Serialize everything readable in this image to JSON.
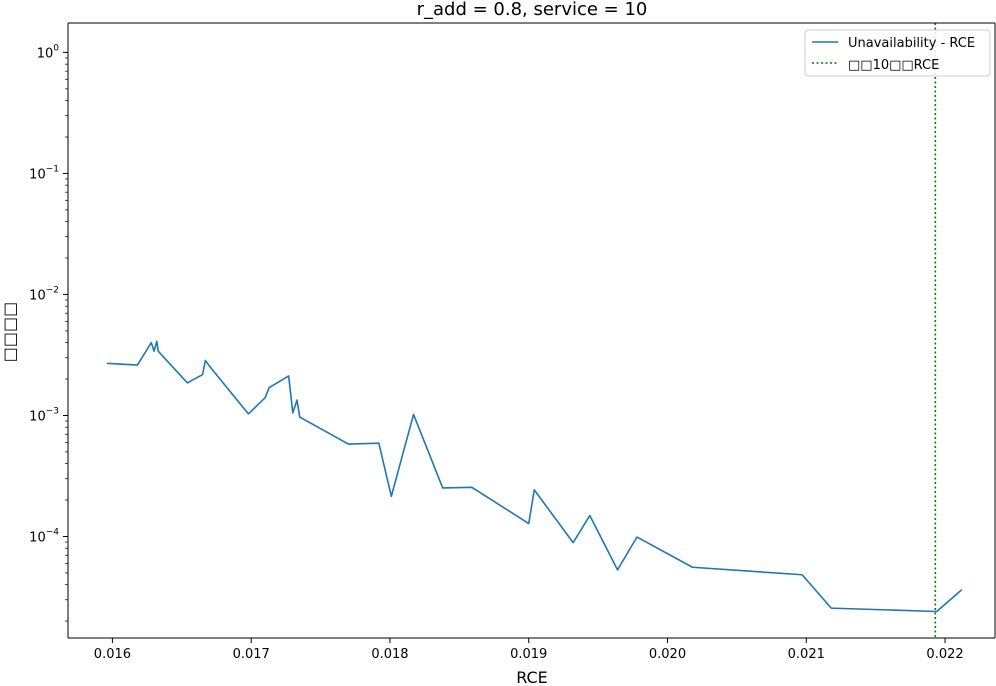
{
  "chart_data": {
    "type": "line",
    "title": "r_add = 0.8, service = 10",
    "xlabel": "RCE",
    "ylabel": "□□□□",
    "xlim": [
      0.01568,
      0.02236
    ],
    "ylim": [
      1.45e-05,
      1.75
    ],
    "yscale": "log",
    "grid": false,
    "legend_position": "top-right",
    "x_ticks": [
      {
        "value": 0.016,
        "label": "0.016"
      },
      {
        "value": 0.017,
        "label": "0.017"
      },
      {
        "value": 0.018,
        "label": "0.018"
      },
      {
        "value": 0.019,
        "label": "0.019"
      },
      {
        "value": 0.02,
        "label": "0.020"
      },
      {
        "value": 0.021,
        "label": "0.021"
      },
      {
        "value": 0.022,
        "label": "0.022"
      }
    ],
    "y_ticks": [
      {
        "value": 1,
        "base": "10",
        "exp": "0"
      },
      {
        "value": 0.1,
        "base": "10",
        "exp": "−1"
      },
      {
        "value": 0.01,
        "base": "10",
        "exp": "−2"
      },
      {
        "value": 0.001,
        "base": "10",
        "exp": "−3"
      },
      {
        "value": 0.0001,
        "base": "10",
        "exp": "−4"
      }
    ],
    "series": [
      {
        "name": "Unavailability - RCE",
        "color": "#1f77b4",
        "style": "solid",
        "points": [
          [
            0.01596,
            0.0027
          ],
          [
            0.01618,
            0.00261
          ],
          [
            0.01628,
            0.004
          ],
          [
            0.0163,
            0.0034
          ],
          [
            0.01632,
            0.0041
          ],
          [
            0.01633,
            0.0034
          ],
          [
            0.01654,
            0.00186
          ],
          [
            0.01665,
            0.00218
          ],
          [
            0.01667,
            0.00285
          ],
          [
            0.0167,
            0.00255
          ],
          [
            0.01698,
            0.00103
          ],
          [
            0.0171,
            0.0014
          ],
          [
            0.01713,
            0.0017
          ],
          [
            0.01727,
            0.00212
          ],
          [
            0.0173,
            0.00105
          ],
          [
            0.01733,
            0.00134
          ],
          [
            0.01735,
            0.00097
          ],
          [
            0.0177,
            0.00058
          ],
          [
            0.01792,
            0.00059
          ],
          [
            0.01801,
            0.000215
          ],
          [
            0.01817,
            0.00102
          ],
          [
            0.01838,
            0.000252
          ],
          [
            0.01859,
            0.000255
          ],
          [
            0.019,
            0.000128
          ],
          [
            0.01904,
            0.000243
          ],
          [
            0.01932,
            8.9e-05
          ],
          [
            0.01944,
            0.000149
          ],
          [
            0.01964,
            5.3e-05
          ],
          [
            0.01978,
            9.9e-05
          ],
          [
            0.02018,
            5.57e-05
          ],
          [
            0.02097,
            4.83e-05
          ],
          [
            0.02118,
            2.56e-05
          ],
          [
            0.02194,
            2.4e-05
          ],
          [
            0.02212,
            3.63e-05
          ]
        ]
      }
    ],
    "reference_line": {
      "name": "□□10□□RCE",
      "x": 0.02193,
      "color": "#008000",
      "style": "dotted"
    }
  }
}
